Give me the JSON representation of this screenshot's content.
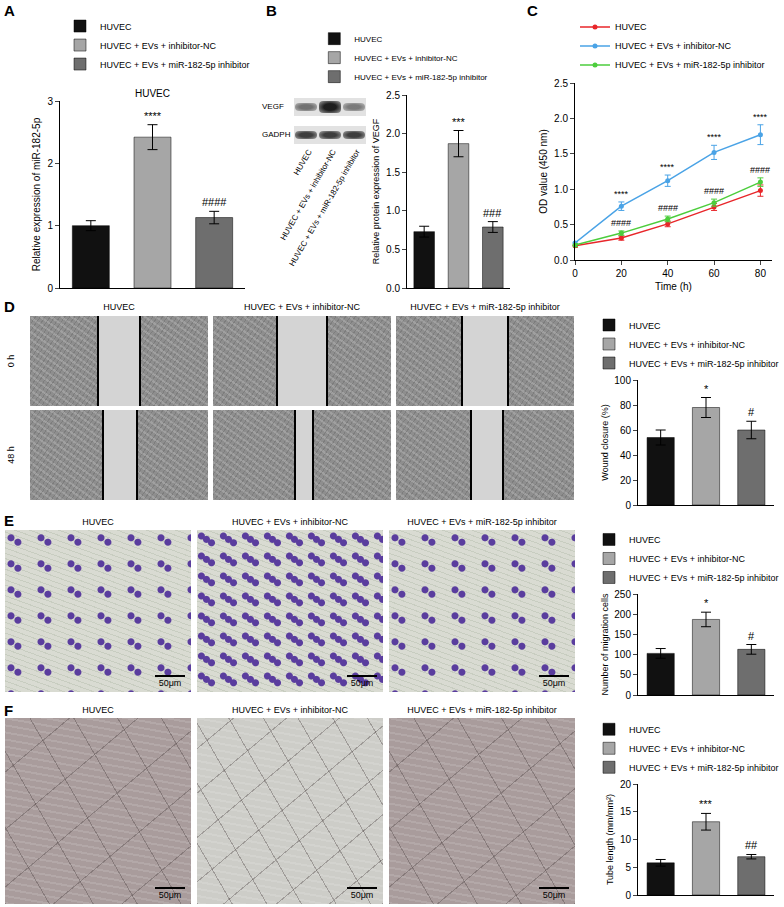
{
  "chart_data": [
    {
      "panel": "A",
      "type": "bar",
      "title": "HUVEC",
      "categories": [
        "HUVEC",
        "HUVEC + EVs + inhibitor-NC",
        "HUVEC + EVs + miR-182-5p inhibitor"
      ],
      "values": [
        1.0,
        2.42,
        1.13
      ],
      "errors": [
        0.08,
        0.2,
        0.1
      ],
      "colors": [
        "#111111",
        "#a6a6a6",
        "#6e6e6e"
      ],
      "y_label": "Relative expression of miR-182-5p",
      "ylim": [
        0,
        3
      ],
      "yticks": [
        0,
        1,
        2,
        3
      ],
      "tick_labels": "y",
      "legend": "top",
      "grid": false,
      "annotations": [
        {
          "category": "HUVEC + EVs + inhibitor-NC",
          "text": "****"
        },
        {
          "category": "HUVEC + EVs + miR-182-5p inhibitor",
          "text": "####"
        }
      ]
    },
    {
      "panel": "B",
      "type": "bar",
      "categories": [
        "HUVEC",
        "HUVEC + EVs + inhibitor-NC",
        "HUVEC + EVs + miR-182-5p inhibitor"
      ],
      "values": [
        0.73,
        1.87,
        0.79
      ],
      "errors": [
        0.07,
        0.17,
        0.07
      ],
      "colors": [
        "#111111",
        "#a6a6a6",
        "#6e6e6e"
      ],
      "y_label": "Relative protein expression of VEGF",
      "ylim": [
        0,
        2.5
      ],
      "yticks": [
        {
          "value": 0,
          "label": "0.0"
        },
        0.5,
        {
          "value": 1,
          "label": "1.0"
        },
        1.5,
        {
          "value": 2,
          "label": "2.0"
        },
        2.5
      ],
      "tick_labels": "y",
      "legend": "top",
      "grid": false,
      "annotations": [
        {
          "category": "HUVEC + EVs + inhibitor-NC",
          "text": "***"
        },
        {
          "category": "HUVEC + EVs + miR-182-5p inhibitor",
          "text": "###"
        }
      ]
    },
    {
      "panel": "C",
      "type": "line",
      "x": [
        0,
        20,
        40,
        60,
        80
      ],
      "series": [
        {
          "name": "HUVEC",
          "color": "#e8262a",
          "marker": "circle",
          "values": [
            0.2,
            0.31,
            0.51,
            0.75,
            0.98
          ],
          "errors": [
            0.02,
            0.03,
            0.04,
            0.05,
            0.08
          ]
        },
        {
          "name": "HUVEC + EVs + inhibitor-NC",
          "color": "#4aa3e6",
          "marker": "circle",
          "values": [
            0.24,
            0.76,
            1.12,
            1.52,
            1.77
          ],
          "errors": [
            0.02,
            0.06,
            0.08,
            0.1,
            0.14
          ]
        },
        {
          "name": "HUVEC + EVs + miR-182-5p inhibitor",
          "color": "#4ccd3c",
          "marker": "circle",
          "values": [
            0.21,
            0.38,
            0.58,
            0.81,
            1.1
          ],
          "errors": [
            0.02,
            0.03,
            0.04,
            0.05,
            0.06
          ]
        }
      ],
      "x_label": "Time (h)",
      "y_label": "OD value (450 nm)",
      "xlim": [
        0,
        85
      ],
      "xticks": [
        0,
        20,
        40,
        60,
        80
      ],
      "ylim": [
        0,
        2.5
      ],
      "yticks": [
        {
          "value": 0,
          "label": "0.0"
        },
        0.5,
        {
          "value": 1,
          "label": "1.0"
        },
        1.5,
        {
          "value": 2,
          "label": "2.0"
        },
        2.5
      ],
      "legend": "top left",
      "grid": false,
      "annotations": [
        {
          "series": "HUVEC + EVs + inhibitor-NC",
          "x": 20,
          "text": "****"
        },
        {
          "series": "HUVEC + EVs + inhibitor-NC",
          "x": 40,
          "text": "****"
        },
        {
          "series": "HUVEC + EVs + inhibitor-NC",
          "x": 60,
          "text": "****"
        },
        {
          "series": "HUVEC + EVs + inhibitor-NC",
          "x": 80,
          "text": "****"
        },
        {
          "series": "HUVEC + EVs + miR-182-5p inhibitor",
          "x": 20,
          "text": "####"
        },
        {
          "series": "HUVEC + EVs + miR-182-5p inhibitor",
          "x": 40,
          "text": "####"
        },
        {
          "series": "HUVEC + EVs + miR-182-5p inhibitor",
          "x": 60,
          "text": "####"
        },
        {
          "series": "HUVEC + EVs + miR-182-5p inhibitor",
          "x": 80,
          "text": "####"
        }
      ]
    },
    {
      "panel": "D",
      "type": "bar",
      "categories": [
        "HUVEC",
        "HUVEC + EVs + inhibitor-NC",
        "HUVEC + EVs + miR-182-5p inhibitor"
      ],
      "values": [
        54,
        78,
        60
      ],
      "errors": [
        6,
        8,
        7
      ],
      "colors": [
        "#111111",
        "#a6a6a6",
        "#6e6e6e"
      ],
      "y_label": "Wound closure (%)",
      "ylim": [
        0,
        100
      ],
      "yticks": [
        0,
        20,
        40,
        60,
        80,
        100
      ],
      "tick_labels": "y",
      "legend": "top",
      "grid": false,
      "annotations": [
        {
          "category": "HUVEC + EVs + inhibitor-NC",
          "text": "*"
        },
        {
          "category": "HUVEC + EVs + miR-182-5p inhibitor",
          "text": "#"
        }
      ]
    },
    {
      "panel": "E",
      "type": "bar",
      "categories": [
        "HUVEC",
        "HUVEC + EVs + inhibitor-NC",
        "HUVEC + EVs + miR-182-5p inhibitor"
      ],
      "values": [
        103,
        187,
        113
      ],
      "errors": [
        12,
        18,
        12
      ],
      "colors": [
        "#111111",
        "#a6a6a6",
        "#6e6e6e"
      ],
      "y_label": "Number of migration cells",
      "ylim": [
        0,
        250
      ],
      "yticks": [
        0,
        50,
        100,
        150,
        200,
        250
      ],
      "tick_labels": "y",
      "legend": "top",
      "grid": false,
      "annotations": [
        {
          "category": "HUVEC + EVs + inhibitor-NC",
          "text": "*"
        },
        {
          "category": "HUVEC + EVs + miR-182-5p inhibitor",
          "text": "#"
        }
      ]
    },
    {
      "panel": "F",
      "type": "bar",
      "categories": [
        "HUVEC",
        "HUVEC + EVs + inhibitor-NC",
        "HUVEC + EVs + miR-182-5p inhibitor"
      ],
      "values": [
        5.8,
        13.2,
        6.9
      ],
      "errors": [
        0.6,
        1.5,
        0.4
      ],
      "colors": [
        "#111111",
        "#a6a6a6",
        "#6e6e6e"
      ],
      "y_label": "Tube length (mm/mm²)",
      "ylim": [
        0,
        20
      ],
      "yticks": [
        0,
        5,
        10,
        15,
        20
      ],
      "tick_labels": "y",
      "legend": "top",
      "grid": false,
      "annotations": [
        {
          "category": "HUVEC + EVs + inhibitor-NC",
          "text": "***"
        },
        {
          "category": "HUVEC + EVs + miR-182-5p inhibitor",
          "text": "##"
        }
      ]
    }
  ],
  "image_panels": [
    {
      "panel": "B",
      "kind": "blot",
      "rows": [
        "VEGF",
        "GADPH"
      ],
      "lanes": [
        "HUVEC",
        "HUVEC + EVs + inhibitor-NC",
        "HUVEC + EVs + miR-182-5p inhibitor"
      ]
    },
    {
      "panel": "D",
      "kind": "wound",
      "rows": [
        "0 h",
        "48 h"
      ],
      "columns": [
        "HUVEC",
        "HUVEC + EVs + inhibitor-NC",
        "HUVEC + EVs + miR-182-5p inhibitor"
      ]
    },
    {
      "panel": "E",
      "kind": "transwell",
      "scale_bar": "50μm",
      "columns": [
        "HUVEC",
        "HUVEC + EVs + inhibitor-NC",
        "HUVEC + EVs + miR-182-5p inhibitor"
      ]
    },
    {
      "panel": "F",
      "kind": "tube",
      "scale_bar": "50μm",
      "columns": [
        "HUVEC",
        "HUVEC + EVs + inhibitor-NC",
        "HUVEC + EVs + miR-182-5p inhibitor"
      ]
    }
  ]
}
